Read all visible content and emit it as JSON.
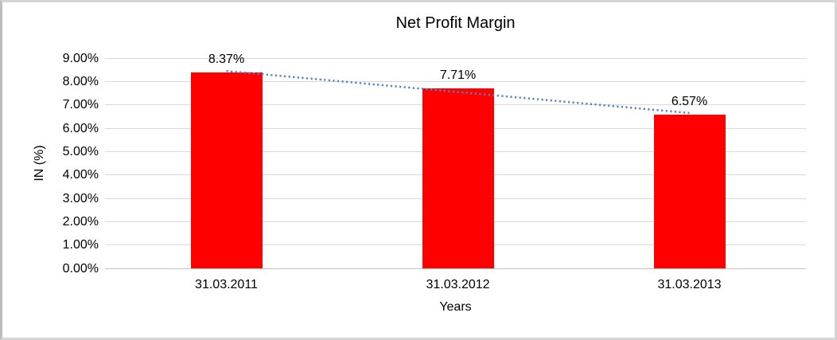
{
  "chart_data": {
    "type": "bar",
    "title": "Net Profit Margin",
    "categories": [
      "31.03.2011",
      "31.03.2012",
      "31.03.2013"
    ],
    "values": [
      8.37,
      7.71,
      6.57
    ],
    "data_labels": [
      "8.37%",
      "7.71%",
      "6.57%"
    ],
    "xlabel": "Years",
    "ylabel": "IN (%)",
    "ylim": [
      0,
      9
    ],
    "ytick_step": 1,
    "yticks": [
      "0.00%",
      "1.00%",
      "2.00%",
      "3.00%",
      "4.00%",
      "5.00%",
      "6.00%",
      "7.00%",
      "8.00%",
      "9.00%"
    ],
    "grid": true,
    "legend": "none",
    "colors": {
      "bar": "#FF0000",
      "gridline": "#D9D9D9",
      "axis_line": "#BFBFBF",
      "text": "#000000",
      "trendline": "#4E86C8",
      "frame_border": "#D5D5D5"
    },
    "trendline": {
      "type": "linear",
      "style": "dotted",
      "color": "#4E86C8",
      "endpoint_values": [
        8.45,
        6.65
      ]
    }
  }
}
